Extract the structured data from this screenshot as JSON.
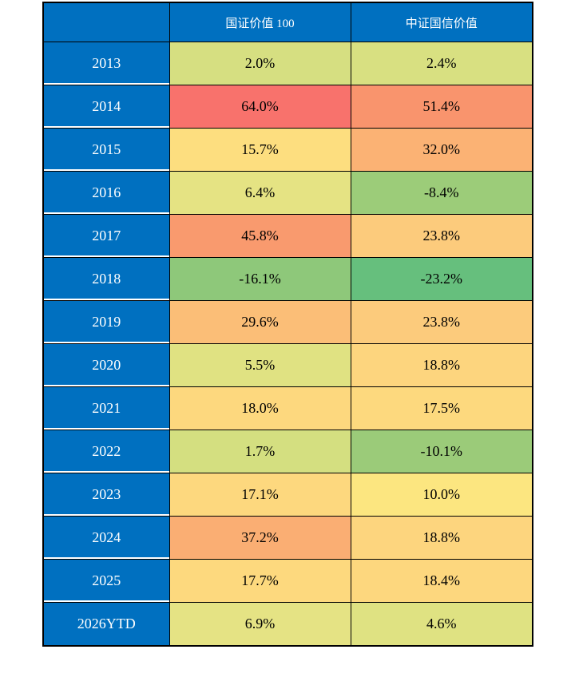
{
  "table": {
    "corner_label": "",
    "columns": [
      "国证价值 100",
      "中证国信价值"
    ],
    "rows": [
      {
        "year": "2013",
        "cells": [
          {
            "text": "2.0%",
            "bg": "#D6DF81"
          },
          {
            "text": "2.4%",
            "bg": "#D8E081"
          }
        ]
      },
      {
        "year": "2014",
        "cells": [
          {
            "text": "64.0%",
            "bg": "#F8726C"
          },
          {
            "text": "51.4%",
            "bg": "#F9946D"
          }
        ]
      },
      {
        "year": "2015",
        "cells": [
          {
            "text": "15.7%",
            "bg": "#FDDE7F"
          },
          {
            "text": "32.0%",
            "bg": "#FBB274"
          }
        ]
      },
      {
        "year": "2016",
        "cells": [
          {
            "text": "6.4%",
            "bg": "#E5E383"
          },
          {
            "text": "-8.4%",
            "bg": "#9CCC79"
          }
        ]
      },
      {
        "year": "2017",
        "cells": [
          {
            "text": "45.8%",
            "bg": "#F99A6E"
          },
          {
            "text": "23.8%",
            "bg": "#FCCB7C"
          }
        ]
      },
      {
        "year": "2018",
        "cells": [
          {
            "text": "-16.1%",
            "bg": "#8EC87A"
          },
          {
            "text": "-23.2%",
            "bg": "#66BF7D"
          }
        ]
      },
      {
        "year": "2019",
        "cells": [
          {
            "text": "29.6%",
            "bg": "#FBBE77"
          },
          {
            "text": "23.8%",
            "bg": "#FCCB7C"
          }
        ]
      },
      {
        "year": "2020",
        "cells": [
          {
            "text": "5.5%",
            "bg": "#E0E282"
          },
          {
            "text": "18.8%",
            "bg": "#FDD57E"
          }
        ]
      },
      {
        "year": "2021",
        "cells": [
          {
            "text": "18.0%",
            "bg": "#FDD87E"
          },
          {
            "text": "17.5%",
            "bg": "#FDD97E"
          }
        ]
      },
      {
        "year": "2022",
        "cells": [
          {
            "text": "1.7%",
            "bg": "#D4DF80"
          },
          {
            "text": "-10.1%",
            "bg": "#9BCB79"
          }
        ]
      },
      {
        "year": "2023",
        "cells": [
          {
            "text": "17.1%",
            "bg": "#FDD87E"
          },
          {
            "text": "10.0%",
            "bg": "#FCE680"
          }
        ]
      },
      {
        "year": "2024",
        "cells": [
          {
            "text": "37.2%",
            "bg": "#FAAE73"
          },
          {
            "text": "18.8%",
            "bg": "#FDD57E"
          }
        ]
      },
      {
        "year": "2025",
        "cells": [
          {
            "text": "17.7%",
            "bg": "#FDD97E"
          },
          {
            "text": "18.4%",
            "bg": "#FDD77E"
          }
        ]
      },
      {
        "year": "2026YTD",
        "cells": [
          {
            "text": "6.9%",
            "bg": "#E5E384"
          },
          {
            "text": "4.6%",
            "bg": "#DFE282"
          }
        ]
      }
    ]
  },
  "colors": {
    "header_bg": "#0070C0",
    "header_text": "#FFFFFF",
    "cell_text": "#000000",
    "border": "#000000",
    "page_bg": "#FFFFFF"
  },
  "chart_data": {
    "type": "table",
    "subtype": "heatmap",
    "categories": [
      "2013",
      "2014",
      "2015",
      "2016",
      "2017",
      "2018",
      "2019",
      "2020",
      "2021",
      "2022",
      "2023",
      "2024",
      "2025",
      "2026YTD"
    ],
    "series": [
      {
        "name": "国证价值 100",
        "values": [
          2.0,
          64.0,
          15.7,
          6.4,
          45.8,
          -16.1,
          29.6,
          5.5,
          18.0,
          1.7,
          17.1,
          37.2,
          17.7,
          6.9
        ]
      },
      {
        "name": "中证国信价值",
        "values": [
          2.4,
          51.4,
          32.0,
          -8.4,
          23.8,
          -23.2,
          23.8,
          18.8,
          17.5,
          -10.1,
          10.0,
          18.8,
          18.4,
          4.6
        ]
      }
    ],
    "unit": "%",
    "title": "",
    "legend_position": "none",
    "color_scale": {
      "min_color": "#66BF7D",
      "mid_color": "#FFEB84",
      "max_color": "#F8696B",
      "min_value": -23.2,
      "max_value": 64.0
    }
  }
}
